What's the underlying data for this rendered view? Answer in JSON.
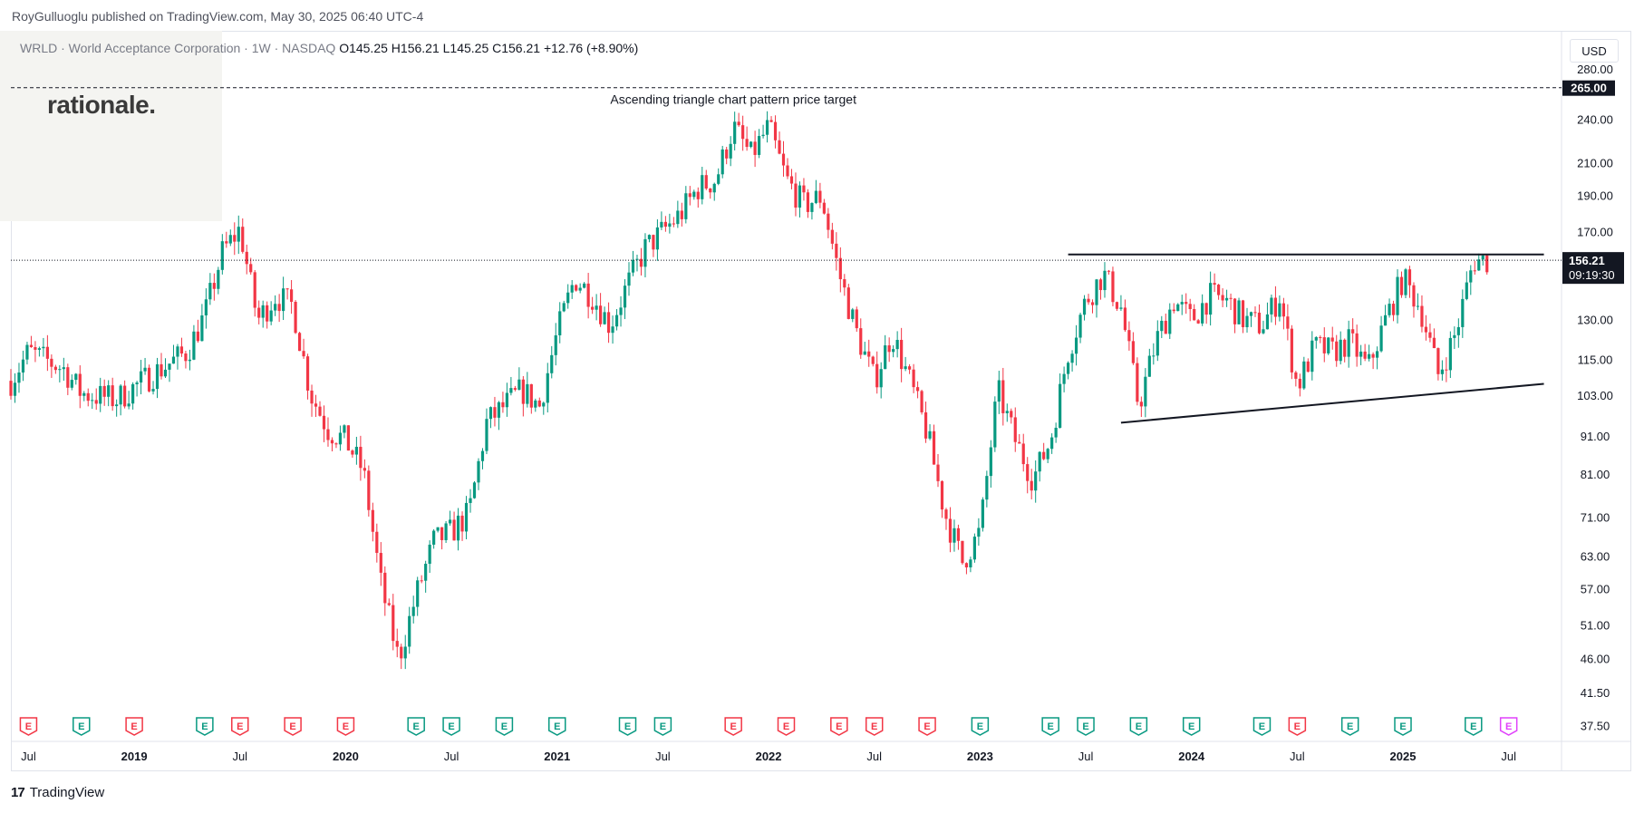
{
  "header": {
    "publisher": "RoyGulluoglu published on TradingView.com, May 30, 2025 06:40 UTC-4"
  },
  "logo": {
    "text": "rationale."
  },
  "legend": {
    "symbol": "WRLD · World Acceptance Corporation · 1W · NASDAQ",
    "open": "O145.25",
    "high": "H156.21",
    "low": "L145.25",
    "close": "C156.21",
    "change": "+12.76 (+8.90%)"
  },
  "currency": "USD",
  "footer": {
    "brand": "TradingView",
    "mark": "17"
  },
  "colors": {
    "up": "#089981",
    "down": "#f23645",
    "earnings_up": "#089981",
    "earnings_down": "#f23645",
    "future": "#e040fb"
  },
  "chart_data": {
    "type": "candlestick",
    "interval": "1W",
    "scale": "log",
    "ylim": [
      36,
      300
    ],
    "y_ticks": [
      280,
      240,
      210,
      190,
      170,
      130,
      115,
      103,
      91,
      81,
      71,
      63,
      57,
      51,
      46,
      41.5,
      37.5
    ],
    "y_tick_labels": [
      "280.00",
      "240.00",
      "210.00",
      "190.00",
      "170.00",
      "130.00",
      "115.00",
      "103.00",
      "91.00",
      "81.00",
      "71.00",
      "63.00",
      "57.00",
      "51.00",
      "46.00",
      "41.50",
      "37.50"
    ],
    "x_range": [
      "2018-06",
      "2025-10"
    ],
    "x_ticks": [
      {
        "label": "Jul",
        "date": "2018-07"
      },
      {
        "label": "2019",
        "date": "2019-01"
      },
      {
        "label": "Jul",
        "date": "2019-07"
      },
      {
        "label": "2020",
        "date": "2020-01"
      },
      {
        "label": "Jul",
        "date": "2020-07"
      },
      {
        "label": "2021",
        "date": "2021-01"
      },
      {
        "label": "Jul",
        "date": "2021-07"
      },
      {
        "label": "2022",
        "date": "2022-01"
      },
      {
        "label": "Jul",
        "date": "2022-07"
      },
      {
        "label": "2023",
        "date": "2023-01"
      },
      {
        "label": "Jul",
        "date": "2023-07"
      },
      {
        "label": "2024",
        "date": "2024-01"
      },
      {
        "label": "Jul",
        "date": "2024-07"
      },
      {
        "label": "2025",
        "date": "2025-01"
      },
      {
        "label": "Jul",
        "date": "2025-07"
      }
    ],
    "price_path": [
      [
        "2018-06",
        108
      ],
      [
        "2018-07",
        118
      ],
      [
        "2018-09",
        112
      ],
      [
        "2018-10",
        104
      ],
      [
        "2018-12",
        102
      ],
      [
        "2019-02",
        110
      ],
      [
        "2019-04",
        118
      ],
      [
        "2019-05",
        132
      ],
      [
        "2019-06",
        160
      ],
      [
        "2019-07",
        172
      ],
      [
        "2019-08",
        130
      ],
      [
        "2019-09",
        140
      ],
      [
        "2019-10",
        136
      ],
      [
        "2019-11",
        104
      ],
      [
        "2019-12",
        93
      ],
      [
        "2020-01",
        90
      ],
      [
        "2020-02",
        82
      ],
      [
        "2020-03",
        58
      ],
      [
        "2020-04",
        46
      ],
      [
        "2020-05",
        56
      ],
      [
        "2020-06",
        66
      ],
      [
        "2020-07",
        68
      ],
      [
        "2020-08",
        72
      ],
      [
        "2020-09",
        95
      ],
      [
        "2020-10",
        100
      ],
      [
        "2020-11",
        105
      ],
      [
        "2020-12",
        100
      ],
      [
        "2021-01",
        125
      ],
      [
        "2021-02",
        148
      ],
      [
        "2021-03",
        140
      ],
      [
        "2021-04",
        128
      ],
      [
        "2021-05",
        145
      ],
      [
        "2021-06",
        162
      ],
      [
        "2021-08",
        180
      ],
      [
        "2021-09",
        195
      ],
      [
        "2021-10",
        200
      ],
      [
        "2021-11",
        235
      ],
      [
        "2021-12",
        215
      ],
      [
        "2022-01",
        235
      ],
      [
        "2022-02",
        200
      ],
      [
        "2022-03",
        185
      ],
      [
        "2022-04",
        190
      ],
      [
        "2022-05",
        150
      ],
      [
        "2022-06",
        125
      ],
      [
        "2022-07",
        108
      ],
      [
        "2022-08",
        125
      ],
      [
        "2022-09",
        108
      ],
      [
        "2022-10",
        92
      ],
      [
        "2022-11",
        72
      ],
      [
        "2022-12",
        62
      ],
      [
        "2023-01",
        68
      ],
      [
        "2023-02",
        105
      ],
      [
        "2023-03",
        90
      ],
      [
        "2023-04",
        80
      ],
      [
        "2023-05",
        90
      ],
      [
        "2023-06",
        118
      ],
      [
        "2023-07",
        138
      ],
      [
        "2023-08",
        150
      ],
      [
        "2023-09",
        135
      ],
      [
        "2023-10",
        100
      ],
      [
        "2023-11",
        122
      ],
      [
        "2023-12",
        138
      ],
      [
        "2024-01",
        130
      ],
      [
        "2024-02",
        140
      ],
      [
        "2024-03",
        138
      ],
      [
        "2024-04",
        130
      ],
      [
        "2024-05",
        128
      ],
      [
        "2024-06",
        140
      ],
      [
        "2024-07",
        106
      ],
      [
        "2024-08",
        120
      ],
      [
        "2024-09",
        118
      ],
      [
        "2024-10",
        122
      ],
      [
        "2024-11",
        112
      ],
      [
        "2024-12",
        130
      ],
      [
        "2025-01",
        148
      ],
      [
        "2025-02",
        135
      ],
      [
        "2025-03",
        110
      ],
      [
        "2025-04",
        125
      ],
      [
        "2025-05",
        156.21
      ]
    ],
    "last_price": {
      "value": 156.21,
      "label": "156.21",
      "countdown": "09:19:30"
    },
    "target": {
      "value": 265,
      "label": "265.00",
      "annotation": "Ascending triangle chart pattern price target"
    },
    "resistance_line": {
      "value": 159,
      "from": "2023-06",
      "to": "2025-09"
    },
    "support_line": {
      "from": [
        "2023-09",
        95
      ],
      "to": [
        "2025-09",
        107
      ]
    },
    "earnings": [
      {
        "date": "2018-07",
        "type": "down"
      },
      {
        "date": "2018-10",
        "type": "up"
      },
      {
        "date": "2019-01",
        "type": "down"
      },
      {
        "date": "2019-05",
        "type": "up"
      },
      {
        "date": "2019-07",
        "type": "down"
      },
      {
        "date": "2019-10",
        "type": "down"
      },
      {
        "date": "2020-01",
        "type": "down"
      },
      {
        "date": "2020-05",
        "type": "up"
      },
      {
        "date": "2020-07",
        "type": "up"
      },
      {
        "date": "2020-10",
        "type": "up"
      },
      {
        "date": "2021-01",
        "type": "up"
      },
      {
        "date": "2021-05",
        "type": "up"
      },
      {
        "date": "2021-07",
        "type": "up"
      },
      {
        "date": "2021-11",
        "type": "down"
      },
      {
        "date": "2022-02",
        "type": "down"
      },
      {
        "date": "2022-05",
        "type": "down"
      },
      {
        "date": "2022-07",
        "type": "down"
      },
      {
        "date": "2022-10",
        "type": "down"
      },
      {
        "date": "2023-01",
        "type": "up"
      },
      {
        "date": "2023-05",
        "type": "up"
      },
      {
        "date": "2023-07",
        "type": "up"
      },
      {
        "date": "2023-10",
        "type": "up"
      },
      {
        "date": "2024-01",
        "type": "up"
      },
      {
        "date": "2024-05",
        "type": "up"
      },
      {
        "date": "2024-07",
        "type": "down"
      },
      {
        "date": "2024-10",
        "type": "up"
      },
      {
        "date": "2025-01",
        "type": "up"
      },
      {
        "date": "2025-05",
        "type": "up"
      },
      {
        "date": "2025-07",
        "type": "future"
      }
    ]
  }
}
